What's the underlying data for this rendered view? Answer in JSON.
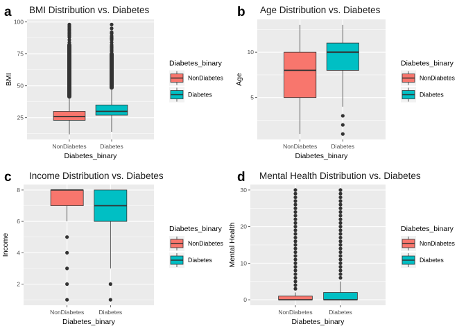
{
  "colors": {
    "NonDiabetes": "#F8766D",
    "Diabetes": "#00BFC4",
    "panel_bg": "#EBEBEB",
    "grid": "#FFFFFF",
    "box_line": "#333333"
  },
  "chart_data": [
    {
      "tag": "a",
      "type": "boxplot",
      "title": "BMI Distribution vs. Diabetes",
      "xlabel": "Diabetes_binary",
      "ylabel": "BMI",
      "categories": [
        "NonDiabetes",
        "Diabetes"
      ],
      "ylim": [
        8,
        102
      ],
      "yticks": [
        25,
        50,
        75,
        100
      ],
      "grid": true,
      "legend": {
        "title": "Diabetes_binary",
        "position": "right",
        "entries": [
          "NonDiabetes",
          "Diabetes"
        ]
      },
      "boxes": [
        {
          "category": "NonDiabetes",
          "whisker_low": 12,
          "q1": 23,
          "median": 26,
          "q3": 30,
          "whisker_high": 40,
          "outliers_dense_range": [
            40,
            82
          ],
          "outliers": [
            84,
            86,
            88,
            89,
            90,
            91,
            92,
            93,
            94,
            95,
            96,
            97,
            98
          ]
        },
        {
          "category": "Diabetes",
          "whisker_low": 14,
          "q1": 27,
          "median": 30,
          "q3": 35,
          "whisker_high": 47,
          "outliers_dense_range": [
            47,
            75
          ],
          "outliers": [
            77,
            78,
            79,
            80,
            81,
            82,
            84,
            86,
            87,
            88,
            89,
            91,
            92,
            95,
            98
          ]
        }
      ]
    },
    {
      "tag": "b",
      "type": "boxplot",
      "title": "Age Distribution vs. Diabetes",
      "xlabel": "Diabetes_binary",
      "ylabel": "Age",
      "categories": [
        "NonDiabetes",
        "Diabetes"
      ],
      "ylim": [
        0.4,
        13.6
      ],
      "yticks": [
        5,
        10
      ],
      "grid": true,
      "legend": {
        "title": "Diabetes_binary",
        "position": "right",
        "entries": [
          "NonDiabetes",
          "Diabetes"
        ]
      },
      "boxes": [
        {
          "category": "NonDiabetes",
          "whisker_low": 1,
          "q1": 5,
          "median": 8,
          "q3": 10,
          "whisker_high": 13,
          "outliers": []
        },
        {
          "category": "Diabetes",
          "whisker_low": 4,
          "q1": 8,
          "median": 10,
          "q3": 11,
          "whisker_high": 13,
          "outliers": [
            1,
            2,
            3
          ]
        }
      ]
    },
    {
      "tag": "c",
      "type": "boxplot",
      "title": "Income Distribution vs. Diabetes",
      "xlabel": "Diabetes_binary",
      "ylabel": "Income",
      "categories": [
        "NonDiabetes",
        "Diabetes"
      ],
      "ylim": [
        0.65,
        8.35
      ],
      "yticks": [
        2,
        4,
        6,
        8
      ],
      "grid": true,
      "legend": {
        "title": "Diabetes_binary",
        "position": "right",
        "entries": [
          "NonDiabetes",
          "Diabetes"
        ]
      },
      "boxes": [
        {
          "category": "NonDiabetes",
          "whisker_low": 6,
          "q1": 7,
          "median": 8,
          "q3": 8,
          "whisker_high": 8,
          "outliers": [
            1,
            2,
            3,
            4,
            5
          ]
        },
        {
          "category": "Diabetes",
          "whisker_low": 3,
          "q1": 6,
          "median": 7,
          "q3": 8,
          "whisker_high": 8,
          "outliers": [
            1,
            2
          ]
        }
      ]
    },
    {
      "tag": "d",
      "type": "boxplot",
      "title": "Mental Health Distribution vs. Diabetes",
      "xlabel": "Diabetes_binary",
      "ylabel": "Mental Health",
      "categories": [
        "NonDiabetes",
        "Diabetes"
      ],
      "ylim": [
        -1.5,
        31.5
      ],
      "yticks": [
        0,
        10,
        20,
        30
      ],
      "grid": true,
      "legend": {
        "title": "Diabetes_binary",
        "position": "right",
        "entries": [
          "NonDiabetes",
          "Diabetes"
        ]
      },
      "boxes": [
        {
          "category": "NonDiabetes",
          "whisker_low": 0,
          "q1": 0,
          "median": 0,
          "q3": 1,
          "whisker_high": 2,
          "outliers": [
            3,
            4,
            5,
            6,
            7,
            8,
            9,
            10,
            11,
            12,
            13,
            14,
            15,
            16,
            17,
            18,
            19,
            20,
            21,
            22,
            23,
            24,
            25,
            26,
            27,
            28,
            29,
            30
          ]
        },
        {
          "category": "Diabetes",
          "whisker_low": 0,
          "q1": 0,
          "median": 0,
          "q3": 2,
          "whisker_high": 5,
          "outliers": [
            6,
            7,
            8,
            9,
            10,
            11,
            12,
            13,
            14,
            15,
            16,
            17,
            18,
            19,
            20,
            21,
            22,
            23,
            24,
            25,
            26,
            27,
            28,
            29,
            30
          ]
        }
      ]
    }
  ]
}
